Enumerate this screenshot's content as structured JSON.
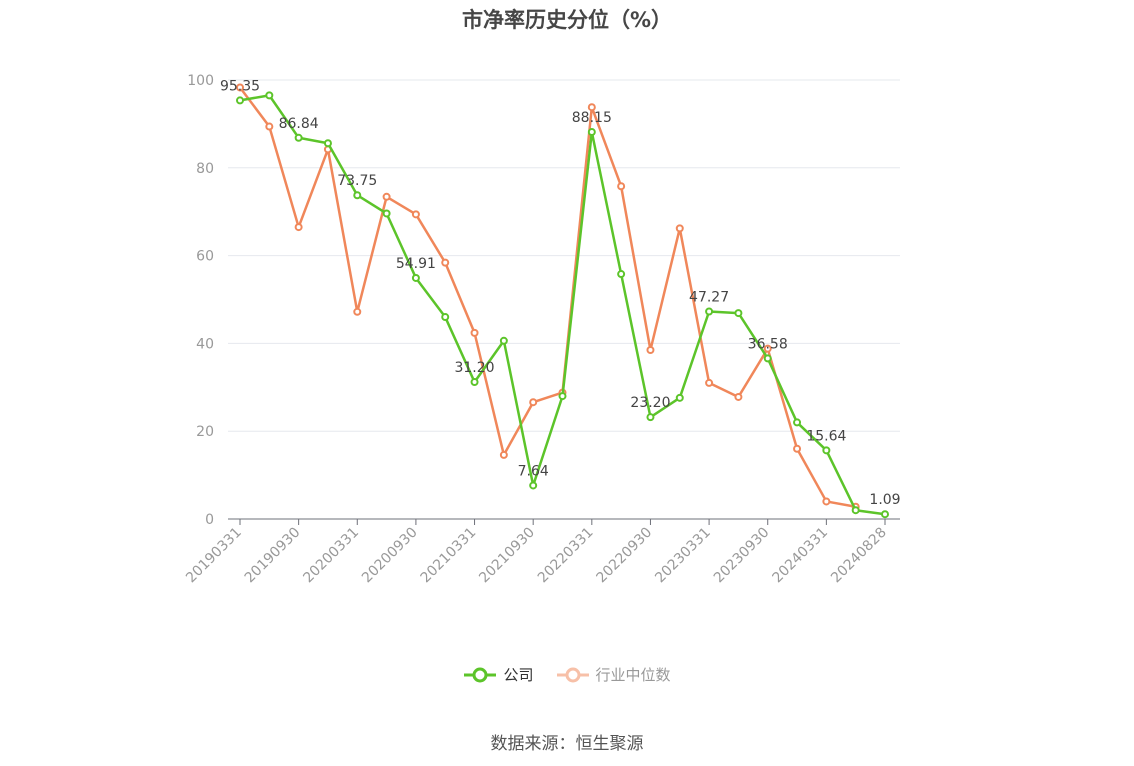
{
  "title": "市净率历史分位（%）",
  "source": "数据来源：恒生聚源",
  "colors": {
    "company": "#5cc42a",
    "industry": "#f0875a",
    "grid": "#e6e8ee",
    "axis": "#999999"
  },
  "chart_data": {
    "type": "line",
    "title": "市净率历史分位（%）",
    "ylim": [
      0,
      100
    ],
    "yticks": [
      0,
      20,
      40,
      60,
      80,
      100
    ],
    "grid": true,
    "legend_position": "bottom",
    "xtick_labels": [
      "20190331",
      "20190930",
      "20200331",
      "20200930",
      "20210331",
      "20210930",
      "20220331",
      "20220930",
      "20230331",
      "20230930",
      "20240331",
      "20240828"
    ],
    "x": [
      "20190331",
      "20190630",
      "20190930",
      "20191231",
      "20200331",
      "20200630",
      "20200930",
      "20201231",
      "20210331",
      "20210630",
      "20210930",
      "20211231",
      "20220331",
      "20220630",
      "20220930",
      "20221231",
      "20230331",
      "20230630",
      "20230930",
      "20231231",
      "20240331",
      "20240630",
      "20240828"
    ],
    "series": [
      {
        "name": "公司",
        "color": "#5cc42a",
        "values": [
          95.35,
          96.5,
          86.84,
          85.6,
          73.75,
          69.6,
          54.91,
          46.0,
          31.2,
          40.6,
          7.64,
          28.0,
          88.15,
          55.8,
          23.2,
          27.6,
          47.27,
          46.9,
          36.58,
          22.0,
          15.64,
          2.0,
          1.09
        ],
        "labels": {
          "0": "95.35",
          "2": "86.84",
          "4": "73.75",
          "6": "54.91",
          "8": "31.20",
          "10": "7.64",
          "12": "88.15",
          "14": "23.20",
          "16": "47.27",
          "18": "36.58",
          "20": "15.64",
          "22": "1.09"
        }
      },
      {
        "name": "行业中位数",
        "color": "#f0875a",
        "values": [
          98.3,
          89.4,
          66.5,
          84.2,
          47.2,
          73.4,
          69.4,
          58.4,
          42.4,
          14.6,
          26.6,
          28.8,
          93.8,
          75.8,
          38.5,
          66.2,
          31.0,
          27.8,
          38.8,
          16.0,
          4.0,
          2.8,
          null
        ]
      }
    ]
  }
}
